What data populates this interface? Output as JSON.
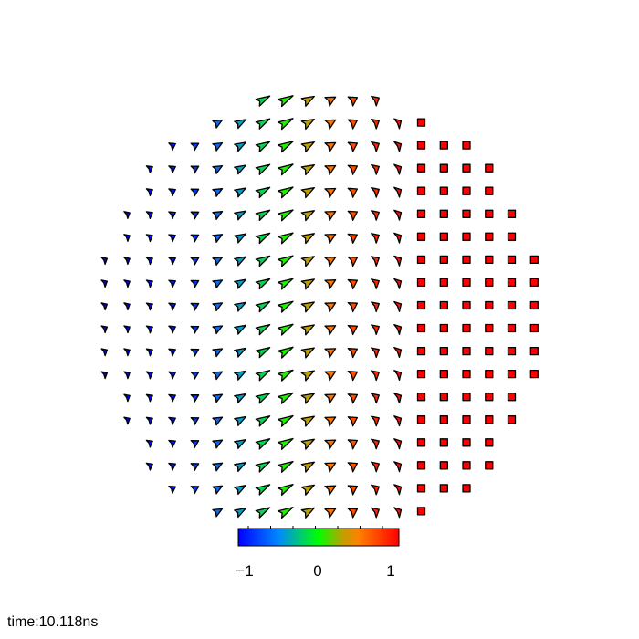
{
  "chart_data": {
    "type": "vector-field",
    "colorbar": {
      "min": -1,
      "max": 1,
      "ticks": [
        "−1",
        "0",
        "1"
      ],
      "colormap": [
        [
          -1,
          "#0000ff"
        ],
        [
          -0.5,
          "#0088ff"
        ],
        [
          0,
          "#00ff00"
        ],
        [
          0.3,
          "#c0a000"
        ],
        [
          0.5,
          "#ff8000"
        ],
        [
          1,
          "#ff0000"
        ]
      ]
    },
    "rows": [
      {
        "start_col": 7,
        "values": [
          -0.15,
          0.05,
          0.3,
          0.55,
          0.7,
          0.85
        ]
      },
      {
        "start_col": 5,
        "values": [
          -0.6,
          -0.4,
          -0.15,
          0.05,
          0.3,
          0.55,
          0.7,
          0.85,
          0.95,
          1
        ]
      },
      {
        "start_col": 3,
        "values": [
          -0.9,
          -0.8,
          -0.6,
          -0.4,
          -0.15,
          0.05,
          0.3,
          0.55,
          0.7,
          0.85,
          0.95,
          1,
          1,
          1
        ]
      },
      {
        "start_col": 2,
        "values": [
          -0.95,
          -0.9,
          -0.8,
          -0.6,
          -0.4,
          -0.15,
          0.05,
          0.3,
          0.55,
          0.7,
          0.85,
          0.95,
          1,
          1,
          1,
          1
        ]
      },
      {
        "start_col": 2,
        "values": [
          -0.95,
          -0.9,
          -0.8,
          -0.6,
          -0.4,
          -0.15,
          0.05,
          0.3,
          0.55,
          0.7,
          0.85,
          0.95,
          1,
          1,
          1,
          1
        ]
      },
      {
        "start_col": 1,
        "values": [
          -1,
          -0.95,
          -0.9,
          -0.8,
          -0.6,
          -0.4,
          -0.15,
          0.05,
          0.3,
          0.55,
          0.7,
          0.85,
          0.95,
          1,
          1,
          1,
          1,
          1
        ]
      },
      {
        "start_col": 1,
        "values": [
          -1,
          -0.95,
          -0.9,
          -0.8,
          -0.6,
          -0.4,
          -0.15,
          0.05,
          0.3,
          0.55,
          0.7,
          0.85,
          0.95,
          1,
          1,
          1,
          1,
          1
        ]
      },
      {
        "start_col": 0,
        "values": [
          -1,
          -1,
          -0.95,
          -0.9,
          -0.8,
          -0.6,
          -0.4,
          -0.15,
          0.05,
          0.3,
          0.55,
          0.7,
          0.85,
          0.95,
          1,
          1,
          1,
          1,
          1,
          1
        ]
      },
      {
        "start_col": 0,
        "values": [
          -1,
          -1,
          -0.95,
          -0.9,
          -0.8,
          -0.6,
          -0.4,
          -0.15,
          0.05,
          0.3,
          0.55,
          0.7,
          0.85,
          0.95,
          1,
          1,
          1,
          1,
          1,
          1
        ]
      },
      {
        "start_col": 0,
        "values": [
          -1,
          -1,
          -0.95,
          -0.9,
          -0.8,
          -0.6,
          -0.4,
          -0.15,
          0.05,
          0.3,
          0.55,
          0.7,
          0.85,
          0.95,
          1,
          1,
          1,
          1,
          1,
          1
        ]
      },
      {
        "start_col": 0,
        "values": [
          -1,
          -1,
          -0.95,
          -0.9,
          -0.8,
          -0.6,
          -0.4,
          -0.15,
          0.05,
          0.3,
          0.55,
          0.7,
          0.85,
          0.95,
          1,
          1,
          1,
          1,
          1,
          1
        ]
      },
      {
        "start_col": 0,
        "values": [
          -1,
          -1,
          -0.95,
          -0.9,
          -0.8,
          -0.6,
          -0.4,
          -0.15,
          0.05,
          0.3,
          0.55,
          0.7,
          0.85,
          0.95,
          1,
          1,
          1,
          1,
          1,
          1
        ]
      },
      {
        "start_col": 0,
        "values": [
          -1,
          -1,
          -0.95,
          -0.9,
          -0.8,
          -0.6,
          -0.4,
          -0.15,
          0.05,
          0.3,
          0.55,
          0.7,
          0.85,
          0.95,
          1,
          1,
          1,
          1,
          1,
          1
        ]
      },
      {
        "start_col": 1,
        "values": [
          -1,
          -0.95,
          -0.9,
          -0.8,
          -0.6,
          -0.4,
          -0.15,
          0.05,
          0.3,
          0.55,
          0.7,
          0.85,
          0.95,
          1,
          1,
          1,
          1,
          1
        ]
      },
      {
        "start_col": 1,
        "values": [
          -1,
          -0.95,
          -0.9,
          -0.8,
          -0.6,
          -0.4,
          -0.15,
          0.05,
          0.3,
          0.55,
          0.7,
          0.85,
          0.95,
          1,
          1,
          1,
          1,
          1
        ]
      },
      {
        "start_col": 2,
        "values": [
          -0.95,
          -0.9,
          -0.8,
          -0.6,
          -0.4,
          -0.15,
          0.05,
          0.3,
          0.55,
          0.7,
          0.85,
          0.95,
          1,
          1,
          1,
          1
        ]
      },
      {
        "start_col": 2,
        "values": [
          -0.95,
          -0.9,
          -0.8,
          -0.6,
          -0.4,
          -0.15,
          0.05,
          0.3,
          0.55,
          0.7,
          0.85,
          0.95,
          1,
          1,
          1,
          1
        ]
      },
      {
        "start_col": 3,
        "values": [
          -0.9,
          -0.8,
          -0.6,
          -0.4,
          -0.15,
          0.05,
          0.3,
          0.55,
          0.7,
          0.85,
          0.95,
          1,
          1,
          1
        ]
      },
      {
        "start_col": 5,
        "values": [
          -0.6,
          -0.4,
          -0.15,
          0.05,
          0.3,
          0.55,
          0.7,
          0.85,
          0.95,
          1
        ]
      }
    ]
  },
  "time_label": "time:10.118ns"
}
